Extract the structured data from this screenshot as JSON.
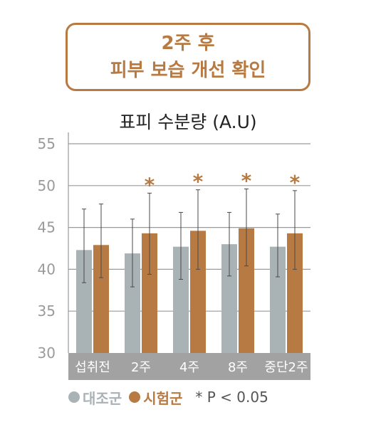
{
  "header": {
    "line1": "2주 후",
    "line2": "피부 보습 개선 확인"
  },
  "chart_data": {
    "type": "bar",
    "title": "표피 수분량 (A.U)",
    "xlabel": "",
    "ylabel": "",
    "ylim": [
      30,
      55
    ],
    "yticks": [
      30,
      35,
      40,
      45,
      50,
      55
    ],
    "grid": true,
    "legend_position": "bottom",
    "categories": [
      "섭취전",
      "2주",
      "4주",
      "8주",
      "중단2주"
    ],
    "series": [
      {
        "name": "대조군",
        "color": "#a9b2b5",
        "values": [
          42.3,
          41.9,
          42.7,
          43.0,
          42.7
        ],
        "error_low": [
          38.4,
          37.9,
          38.8,
          39.2,
          39.1
        ],
        "error_high": [
          47.2,
          46.0,
          46.8,
          46.8,
          46.6
        ]
      },
      {
        "name": "시험군",
        "color": "#b77a42",
        "values": [
          42.9,
          44.3,
          44.6,
          44.9,
          44.3
        ],
        "error_low": [
          39.0,
          39.4,
          40.0,
          40.4,
          40.0
        ],
        "error_high": [
          47.8,
          49.1,
          49.5,
          49.6,
          49.4
        ]
      }
    ],
    "significance": [
      "",
      "*",
      "*",
      "*",
      "*"
    ],
    "note": "* P < 0.05"
  }
}
